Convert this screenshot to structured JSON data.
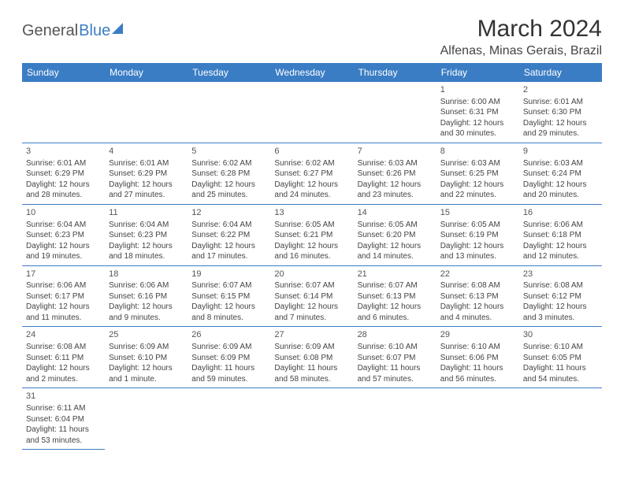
{
  "logo": {
    "part1": "General",
    "part2": "Blue"
  },
  "title": "March 2024",
  "location": "Alfenas, Minas Gerais, Brazil",
  "colors": {
    "header_bg": "#3b7dc4",
    "header_text": "#ffffff",
    "border": "#3b7dc4"
  },
  "weekdays": [
    "Sunday",
    "Monday",
    "Tuesday",
    "Wednesday",
    "Thursday",
    "Friday",
    "Saturday"
  ],
  "cells": [
    {
      "day": "",
      "sunrise": "",
      "sunset": "",
      "daylight1": "",
      "daylight2": ""
    },
    {
      "day": "",
      "sunrise": "",
      "sunset": "",
      "daylight1": "",
      "daylight2": ""
    },
    {
      "day": "",
      "sunrise": "",
      "sunset": "",
      "daylight1": "",
      "daylight2": ""
    },
    {
      "day": "",
      "sunrise": "",
      "sunset": "",
      "daylight1": "",
      "daylight2": ""
    },
    {
      "day": "",
      "sunrise": "",
      "sunset": "",
      "daylight1": "",
      "daylight2": ""
    },
    {
      "day": "1",
      "sunrise": "Sunrise: 6:00 AM",
      "sunset": "Sunset: 6:31 PM",
      "daylight1": "Daylight: 12 hours",
      "daylight2": "and 30 minutes."
    },
    {
      "day": "2",
      "sunrise": "Sunrise: 6:01 AM",
      "sunset": "Sunset: 6:30 PM",
      "daylight1": "Daylight: 12 hours",
      "daylight2": "and 29 minutes."
    },
    {
      "day": "3",
      "sunrise": "Sunrise: 6:01 AM",
      "sunset": "Sunset: 6:29 PM",
      "daylight1": "Daylight: 12 hours",
      "daylight2": "and 28 minutes."
    },
    {
      "day": "4",
      "sunrise": "Sunrise: 6:01 AM",
      "sunset": "Sunset: 6:29 PM",
      "daylight1": "Daylight: 12 hours",
      "daylight2": "and 27 minutes."
    },
    {
      "day": "5",
      "sunrise": "Sunrise: 6:02 AM",
      "sunset": "Sunset: 6:28 PM",
      "daylight1": "Daylight: 12 hours",
      "daylight2": "and 25 minutes."
    },
    {
      "day": "6",
      "sunrise": "Sunrise: 6:02 AM",
      "sunset": "Sunset: 6:27 PM",
      "daylight1": "Daylight: 12 hours",
      "daylight2": "and 24 minutes."
    },
    {
      "day": "7",
      "sunrise": "Sunrise: 6:03 AM",
      "sunset": "Sunset: 6:26 PM",
      "daylight1": "Daylight: 12 hours",
      "daylight2": "and 23 minutes."
    },
    {
      "day": "8",
      "sunrise": "Sunrise: 6:03 AM",
      "sunset": "Sunset: 6:25 PM",
      "daylight1": "Daylight: 12 hours",
      "daylight2": "and 22 minutes."
    },
    {
      "day": "9",
      "sunrise": "Sunrise: 6:03 AM",
      "sunset": "Sunset: 6:24 PM",
      "daylight1": "Daylight: 12 hours",
      "daylight2": "and 20 minutes."
    },
    {
      "day": "10",
      "sunrise": "Sunrise: 6:04 AM",
      "sunset": "Sunset: 6:23 PM",
      "daylight1": "Daylight: 12 hours",
      "daylight2": "and 19 minutes."
    },
    {
      "day": "11",
      "sunrise": "Sunrise: 6:04 AM",
      "sunset": "Sunset: 6:23 PM",
      "daylight1": "Daylight: 12 hours",
      "daylight2": "and 18 minutes."
    },
    {
      "day": "12",
      "sunrise": "Sunrise: 6:04 AM",
      "sunset": "Sunset: 6:22 PM",
      "daylight1": "Daylight: 12 hours",
      "daylight2": "and 17 minutes."
    },
    {
      "day": "13",
      "sunrise": "Sunrise: 6:05 AM",
      "sunset": "Sunset: 6:21 PM",
      "daylight1": "Daylight: 12 hours",
      "daylight2": "and 16 minutes."
    },
    {
      "day": "14",
      "sunrise": "Sunrise: 6:05 AM",
      "sunset": "Sunset: 6:20 PM",
      "daylight1": "Daylight: 12 hours",
      "daylight2": "and 14 minutes."
    },
    {
      "day": "15",
      "sunrise": "Sunrise: 6:05 AM",
      "sunset": "Sunset: 6:19 PM",
      "daylight1": "Daylight: 12 hours",
      "daylight2": "and 13 minutes."
    },
    {
      "day": "16",
      "sunrise": "Sunrise: 6:06 AM",
      "sunset": "Sunset: 6:18 PM",
      "daylight1": "Daylight: 12 hours",
      "daylight2": "and 12 minutes."
    },
    {
      "day": "17",
      "sunrise": "Sunrise: 6:06 AM",
      "sunset": "Sunset: 6:17 PM",
      "daylight1": "Daylight: 12 hours",
      "daylight2": "and 11 minutes."
    },
    {
      "day": "18",
      "sunrise": "Sunrise: 6:06 AM",
      "sunset": "Sunset: 6:16 PM",
      "daylight1": "Daylight: 12 hours",
      "daylight2": "and 9 minutes."
    },
    {
      "day": "19",
      "sunrise": "Sunrise: 6:07 AM",
      "sunset": "Sunset: 6:15 PM",
      "daylight1": "Daylight: 12 hours",
      "daylight2": "and 8 minutes."
    },
    {
      "day": "20",
      "sunrise": "Sunrise: 6:07 AM",
      "sunset": "Sunset: 6:14 PM",
      "daylight1": "Daylight: 12 hours",
      "daylight2": "and 7 minutes."
    },
    {
      "day": "21",
      "sunrise": "Sunrise: 6:07 AM",
      "sunset": "Sunset: 6:13 PM",
      "daylight1": "Daylight: 12 hours",
      "daylight2": "and 6 minutes."
    },
    {
      "day": "22",
      "sunrise": "Sunrise: 6:08 AM",
      "sunset": "Sunset: 6:13 PM",
      "daylight1": "Daylight: 12 hours",
      "daylight2": "and 4 minutes."
    },
    {
      "day": "23",
      "sunrise": "Sunrise: 6:08 AM",
      "sunset": "Sunset: 6:12 PM",
      "daylight1": "Daylight: 12 hours",
      "daylight2": "and 3 minutes."
    },
    {
      "day": "24",
      "sunrise": "Sunrise: 6:08 AM",
      "sunset": "Sunset: 6:11 PM",
      "daylight1": "Daylight: 12 hours",
      "daylight2": "and 2 minutes."
    },
    {
      "day": "25",
      "sunrise": "Sunrise: 6:09 AM",
      "sunset": "Sunset: 6:10 PM",
      "daylight1": "Daylight: 12 hours",
      "daylight2": "and 1 minute."
    },
    {
      "day": "26",
      "sunrise": "Sunrise: 6:09 AM",
      "sunset": "Sunset: 6:09 PM",
      "daylight1": "Daylight: 11 hours",
      "daylight2": "and 59 minutes."
    },
    {
      "day": "27",
      "sunrise": "Sunrise: 6:09 AM",
      "sunset": "Sunset: 6:08 PM",
      "daylight1": "Daylight: 11 hours",
      "daylight2": "and 58 minutes."
    },
    {
      "day": "28",
      "sunrise": "Sunrise: 6:10 AM",
      "sunset": "Sunset: 6:07 PM",
      "daylight1": "Daylight: 11 hours",
      "daylight2": "and 57 minutes."
    },
    {
      "day": "29",
      "sunrise": "Sunrise: 6:10 AM",
      "sunset": "Sunset: 6:06 PM",
      "daylight1": "Daylight: 11 hours",
      "daylight2": "and 56 minutes."
    },
    {
      "day": "30",
      "sunrise": "Sunrise: 6:10 AM",
      "sunset": "Sunset: 6:05 PM",
      "daylight1": "Daylight: 11 hours",
      "daylight2": "and 54 minutes."
    },
    {
      "day": "31",
      "sunrise": "Sunrise: 6:11 AM",
      "sunset": "Sunset: 6:04 PM",
      "daylight1": "Daylight: 11 hours",
      "daylight2": "and 53 minutes."
    },
    {
      "day": "",
      "sunrise": "",
      "sunset": "",
      "daylight1": "",
      "daylight2": ""
    },
    {
      "day": "",
      "sunrise": "",
      "sunset": "",
      "daylight1": "",
      "daylight2": ""
    },
    {
      "day": "",
      "sunrise": "",
      "sunset": "",
      "daylight1": "",
      "daylight2": ""
    },
    {
      "day": "",
      "sunrise": "",
      "sunset": "",
      "daylight1": "",
      "daylight2": ""
    },
    {
      "day": "",
      "sunrise": "",
      "sunset": "",
      "daylight1": "",
      "daylight2": ""
    },
    {
      "day": "",
      "sunrise": "",
      "sunset": "",
      "daylight1": "",
      "daylight2": ""
    }
  ]
}
